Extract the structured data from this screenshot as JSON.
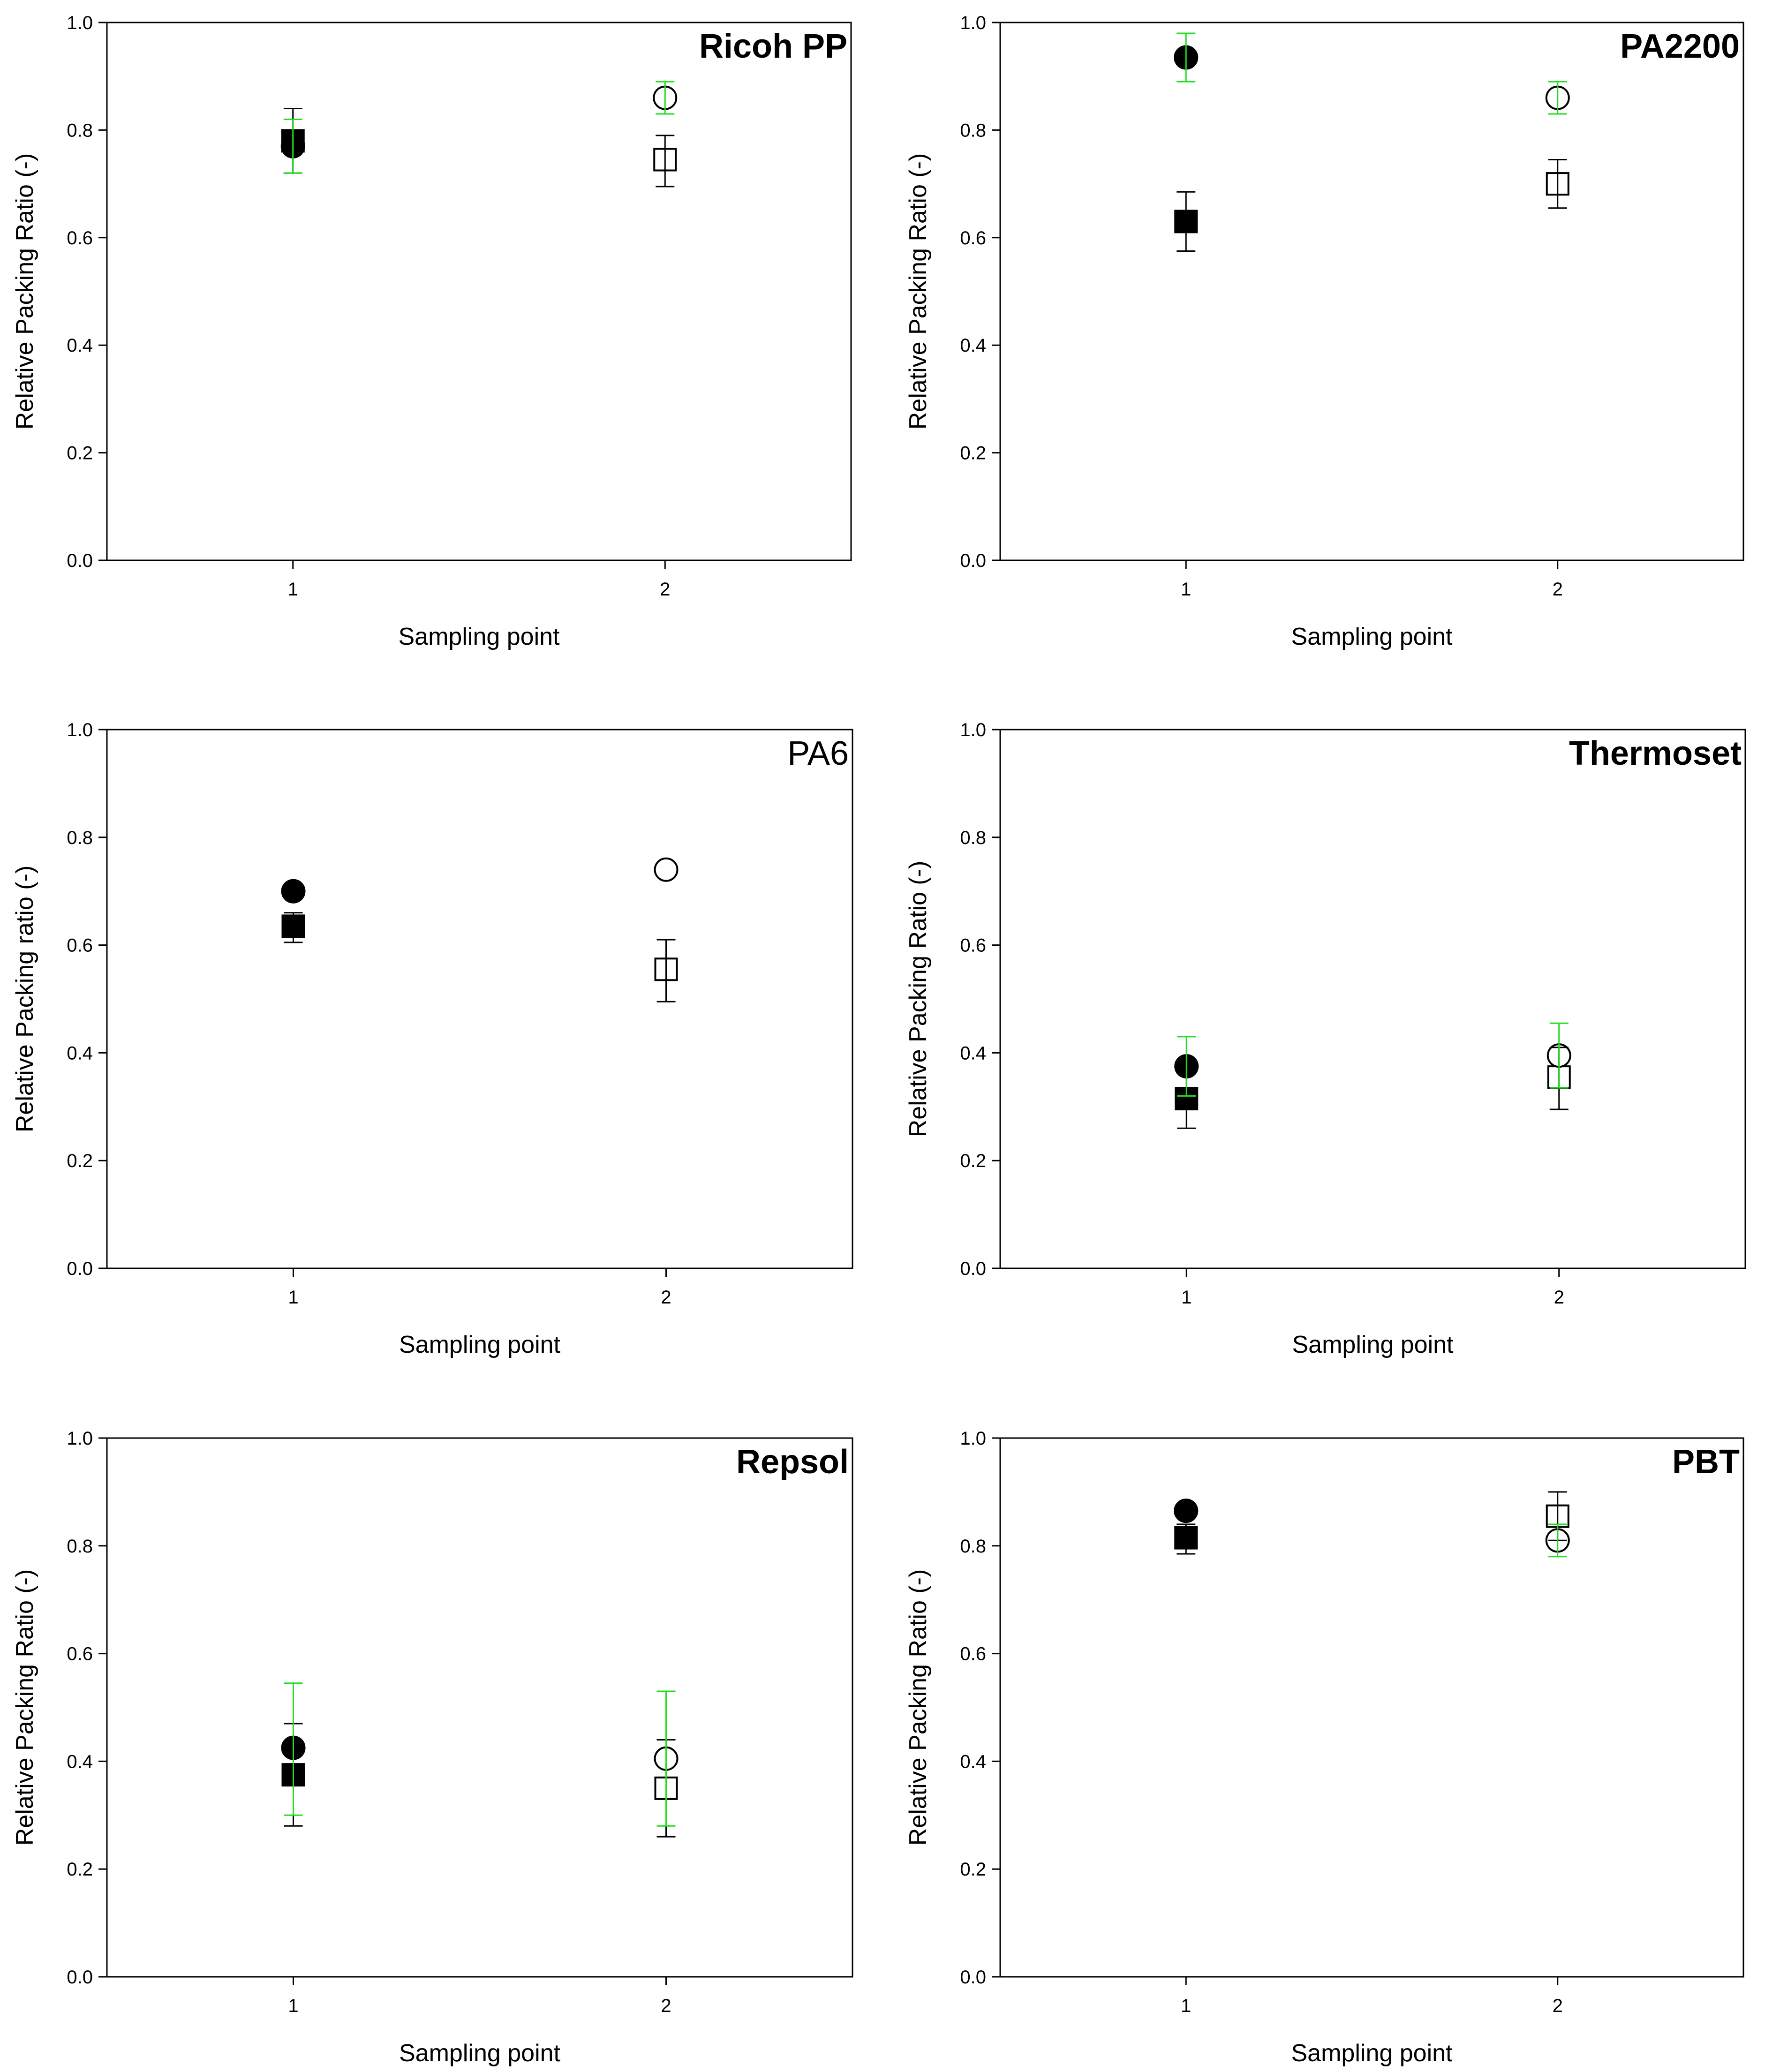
{
  "chart_data": [
    {
      "type": "scatter",
      "title": "Ricoh PP",
      "title_weight": "bold",
      "xlabel": "Sampling point",
      "ylabel": "Relative Packing Ratio (-)",
      "categories": [
        "1",
        "2"
      ],
      "yticks": [
        "0.0",
        "0.2",
        "0.4",
        "0.6",
        "0.8",
        "1.0"
      ],
      "ylim": [
        0,
        1.0
      ],
      "series": [
        {
          "name": "filled square",
          "marker": "square",
          "filled": true,
          "error_color": "#000000",
          "points": [
            {
              "x": 1,
              "y": 0.78,
              "lo": 0.72,
              "hi": 0.84
            }
          ]
        },
        {
          "name": "filled circle",
          "marker": "circle",
          "filled": true,
          "error_color": "#22dd22",
          "points": [
            {
              "x": 1,
              "y": 0.77,
              "lo": 0.72,
              "hi": 0.82
            }
          ]
        },
        {
          "name": "open square",
          "marker": "square",
          "filled": false,
          "error_color": "#000000",
          "points": [
            {
              "x": 2,
              "y": 0.745,
              "lo": 0.695,
              "hi": 0.79
            }
          ]
        },
        {
          "name": "open circle",
          "marker": "circle",
          "filled": false,
          "error_color": "#22dd22",
          "points": [
            {
              "x": 2,
              "y": 0.86,
              "lo": 0.83,
              "hi": 0.89
            }
          ]
        }
      ]
    },
    {
      "type": "scatter",
      "title": "PA2200",
      "title_weight": "bold",
      "xlabel": "Sampling point",
      "ylabel": "Relative Packing Ratio (-)",
      "categories": [
        "1",
        "2"
      ],
      "yticks": [
        "0.0",
        "0.2",
        "0.4",
        "0.6",
        "0.8",
        "1.0"
      ],
      "ylim": [
        0,
        1.0
      ],
      "series": [
        {
          "name": "filled square",
          "marker": "square",
          "filled": true,
          "error_color": "#000000",
          "points": [
            {
              "x": 1,
              "y": 0.63,
              "lo": 0.575,
              "hi": 0.685
            }
          ]
        },
        {
          "name": "filled circle",
          "marker": "circle",
          "filled": true,
          "error_color": "#22dd22",
          "points": [
            {
              "x": 1,
              "y": 0.935,
              "lo": 0.89,
              "hi": 0.98
            }
          ]
        },
        {
          "name": "open square",
          "marker": "square",
          "filled": false,
          "error_color": "#000000",
          "points": [
            {
              "x": 2,
              "y": 0.7,
              "lo": 0.655,
              "hi": 0.745
            }
          ]
        },
        {
          "name": "open circle",
          "marker": "circle",
          "filled": false,
          "error_color": "#22dd22",
          "points": [
            {
              "x": 2,
              "y": 0.86,
              "lo": 0.83,
              "hi": 0.89
            }
          ]
        }
      ]
    },
    {
      "type": "scatter",
      "title": "PA6",
      "title_weight": "normal",
      "xlabel": "Sampling point",
      "ylabel": "Relative Packing ratio (-)",
      "categories": [
        "1",
        "2"
      ],
      "yticks": [
        "0.0",
        "0.2",
        "0.4",
        "0.6",
        "0.8",
        "1.0"
      ],
      "ylim": [
        0,
        1.0
      ],
      "series": [
        {
          "name": "filled square",
          "marker": "square",
          "filled": true,
          "error_color": "#000000",
          "points": [
            {
              "x": 1,
              "y": 0.635,
              "lo": 0.605,
              "hi": 0.66
            }
          ]
        },
        {
          "name": "filled circle",
          "marker": "circle",
          "filled": true,
          "error_color": "#22dd22",
          "points": [
            {
              "x": 1,
              "y": 0.7,
              "lo": 0.7,
              "hi": 0.7
            }
          ]
        },
        {
          "name": "open square",
          "marker": "square",
          "filled": false,
          "error_color": "#000000",
          "points": [
            {
              "x": 2,
              "y": 0.555,
              "lo": 0.495,
              "hi": 0.61
            }
          ]
        },
        {
          "name": "open circle",
          "marker": "circle",
          "filled": false,
          "error_color": "#22dd22",
          "points": [
            {
              "x": 2,
              "y": 0.74,
              "lo": 0.74,
              "hi": 0.74
            }
          ]
        }
      ]
    },
    {
      "type": "scatter",
      "title": "Thermoset",
      "title_weight": "bold",
      "xlabel": "Sampling point",
      "ylabel": "Relative Packing Ratio (-)",
      "categories": [
        "1",
        "2"
      ],
      "yticks": [
        "0.0",
        "0.2",
        "0.4",
        "0.6",
        "0.8",
        "1.0"
      ],
      "ylim": [
        0,
        1.0
      ],
      "series": [
        {
          "name": "filled square",
          "marker": "square",
          "filled": true,
          "error_color": "#000000",
          "points": [
            {
              "x": 1,
              "y": 0.315,
              "lo": 0.26,
              "hi": 0.37
            }
          ]
        },
        {
          "name": "filled circle",
          "marker": "circle",
          "filled": true,
          "error_color": "#22dd22",
          "points": [
            {
              "x": 1,
              "y": 0.375,
              "lo": 0.32,
              "hi": 0.43
            }
          ]
        },
        {
          "name": "open square",
          "marker": "square",
          "filled": false,
          "error_color": "#000000",
          "points": [
            {
              "x": 2,
              "y": 0.355,
              "lo": 0.295,
              "hi": 0.41
            }
          ]
        },
        {
          "name": "open circle",
          "marker": "circle",
          "filled": false,
          "error_color": "#22dd22",
          "points": [
            {
              "x": 2,
              "y": 0.395,
              "lo": 0.335,
              "hi": 0.455
            }
          ]
        }
      ]
    },
    {
      "type": "scatter",
      "title": "Repsol",
      "title_weight": "bold",
      "xlabel": "Sampling point",
      "ylabel": "Relative Packing Ratio (-)",
      "categories": [
        "1",
        "2"
      ],
      "yticks": [
        "0.0",
        "0.2",
        "0.4",
        "0.6",
        "0.8",
        "1.0"
      ],
      "ylim": [
        0,
        1.0
      ],
      "series": [
        {
          "name": "filled square",
          "marker": "square",
          "filled": true,
          "error_color": "#000000",
          "points": [
            {
              "x": 1,
              "y": 0.375,
              "lo": 0.28,
              "hi": 0.47
            }
          ]
        },
        {
          "name": "filled circle",
          "marker": "circle",
          "filled": true,
          "error_color": "#22dd22",
          "points": [
            {
              "x": 1,
              "y": 0.425,
              "lo": 0.3,
              "hi": 0.545
            }
          ]
        },
        {
          "name": "open square",
          "marker": "square",
          "filled": false,
          "error_color": "#000000",
          "points": [
            {
              "x": 2,
              "y": 0.35,
              "lo": 0.26,
              "hi": 0.44
            }
          ]
        },
        {
          "name": "open circle",
          "marker": "circle",
          "filled": false,
          "error_color": "#22dd22",
          "points": [
            {
              "x": 2,
              "y": 0.405,
              "lo": 0.28,
              "hi": 0.53
            }
          ]
        }
      ]
    },
    {
      "type": "scatter",
      "title": "PBT",
      "title_weight": "bold",
      "xlabel": "Sampling point",
      "ylabel": "Relative Packing Ratio (-)",
      "categories": [
        "1",
        "2"
      ],
      "yticks": [
        "0.0",
        "0.2",
        "0.4",
        "0.6",
        "0.8",
        "1.0"
      ],
      "ylim": [
        0,
        1.0
      ],
      "series": [
        {
          "name": "filled square",
          "marker": "square",
          "filled": true,
          "error_color": "#000000",
          "points": [
            {
              "x": 1,
              "y": 0.815,
              "lo": 0.785,
              "hi": 0.84
            }
          ]
        },
        {
          "name": "filled circle",
          "marker": "circle",
          "filled": true,
          "error_color": "#22dd22",
          "points": [
            {
              "x": 1,
              "y": 0.865,
              "lo": 0.865,
              "hi": 0.865
            }
          ]
        },
        {
          "name": "open square",
          "marker": "square",
          "filled": false,
          "error_color": "#000000",
          "points": [
            {
              "x": 2,
              "y": 0.855,
              "lo": 0.81,
              "hi": 0.9
            }
          ]
        },
        {
          "name": "open circle",
          "marker": "circle",
          "filled": false,
          "error_color": "#22dd22",
          "points": [
            {
              "x": 2,
              "y": 0.81,
              "lo": 0.78,
              "hi": 0.84
            }
          ]
        }
      ]
    }
  ]
}
